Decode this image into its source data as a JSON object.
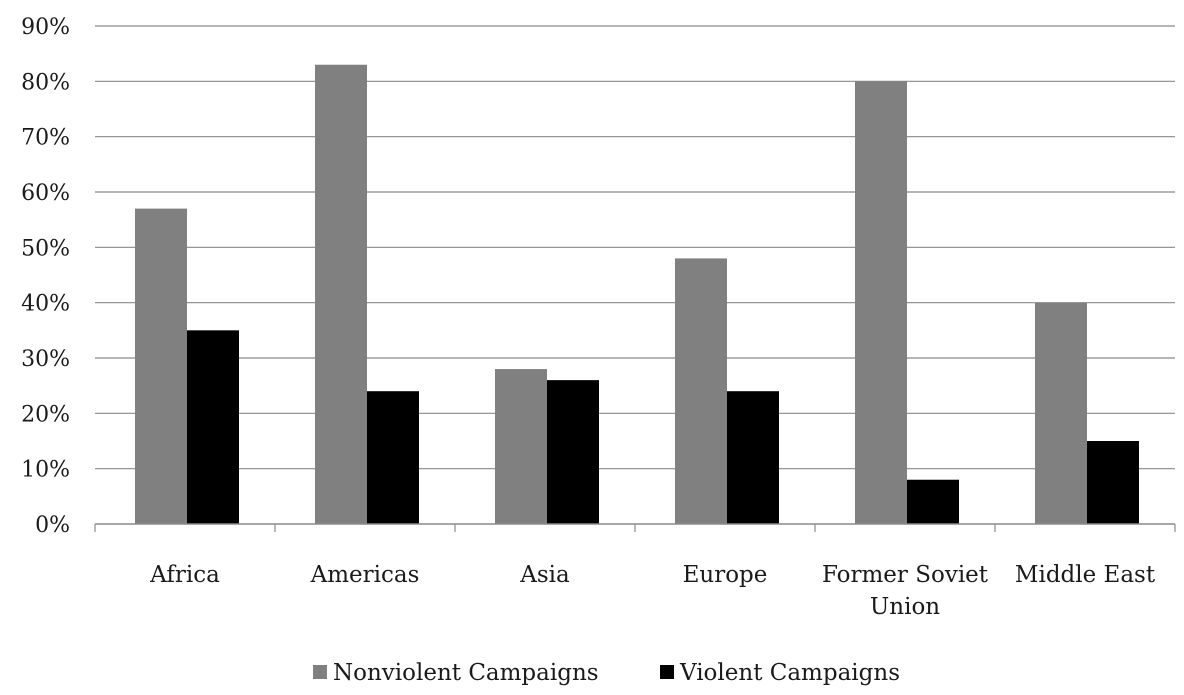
{
  "chart_data": {
    "type": "bar",
    "categories": [
      "Africa",
      "Americas",
      "Asia",
      "Europe",
      "Former Soviet Union",
      "Middle East"
    ],
    "category_lines": [
      [
        "Africa"
      ],
      [
        "Americas"
      ],
      [
        "Asia"
      ],
      [
        "Europe"
      ],
      [
        "Former Soviet",
        "Union"
      ],
      [
        "Middle East"
      ]
    ],
    "series": [
      {
        "name": "Nonviolent Campaigns",
        "values": [
          57,
          83,
          28,
          48,
          80,
          40
        ],
        "color": "#808080"
      },
      {
        "name": "Violent Campaigns",
        "values": [
          35,
          24,
          26,
          24,
          8,
          15
        ],
        "color": "#000000"
      }
    ],
    "y_ticks": [
      0,
      10,
      20,
      30,
      40,
      50,
      60,
      70,
      80,
      90
    ],
    "y_tick_labels": [
      "0%",
      "10%",
      "20%",
      "30%",
      "40%",
      "50%",
      "60%",
      "70%",
      "80%",
      "90%"
    ],
    "ylim": [
      0,
      90
    ],
    "grid": true,
    "legend": "bottom",
    "title": "",
    "xlabel": "",
    "ylabel": ""
  }
}
